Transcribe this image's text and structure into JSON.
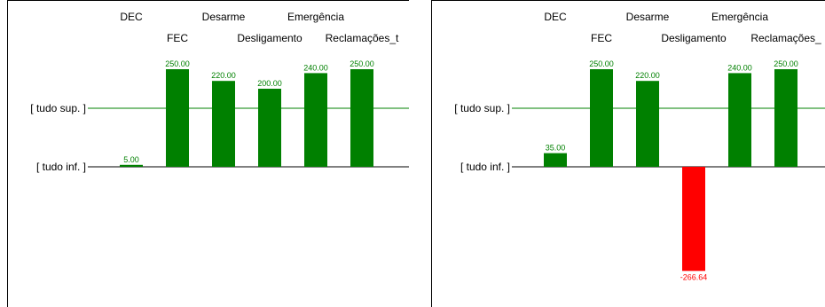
{
  "chart_data": [
    {
      "type": "bar",
      "categories": [
        "DEC",
        "FEC",
        "Desarme",
        "Desligamento",
        "Emergência",
        "Reclamações_t"
      ],
      "values": [
        5.0,
        250.0,
        220.0,
        200.0,
        240.0,
        250.0
      ],
      "value_labels": [
        "5.00",
        "250.00",
        "220.00",
        "200.00",
        "240.00",
        "250.00"
      ],
      "reference_lines": [
        {
          "label": "[ tudo sup. ]",
          "value": 150
        },
        {
          "label": "[ tudo inf. ]",
          "value": 0
        }
      ],
      "colors": {
        "positive": "#008000",
        "negative": "#ff0000",
        "line": "#000000",
        "ref_line": "#008000"
      }
    },
    {
      "type": "bar",
      "categories": [
        "DEC",
        "FEC",
        "Desarme",
        "Desligamento",
        "Emergência",
        "Reclamações_"
      ],
      "values": [
        35.0,
        250.0,
        220.0,
        -266.64,
        240.0,
        250.0
      ],
      "value_labels": [
        "35.00",
        "250.00",
        "220.00",
        "-266.64",
        "240.00",
        "250.00"
      ],
      "reference_lines": [
        {
          "label": "[ tudo sup. ]",
          "value": 150
        },
        {
          "label": "[ tudo inf. ]",
          "value": 0
        }
      ],
      "colors": {
        "positive": "#008000",
        "negative": "#ff0000",
        "line": "#000000",
        "ref_line": "#008000"
      }
    }
  ]
}
